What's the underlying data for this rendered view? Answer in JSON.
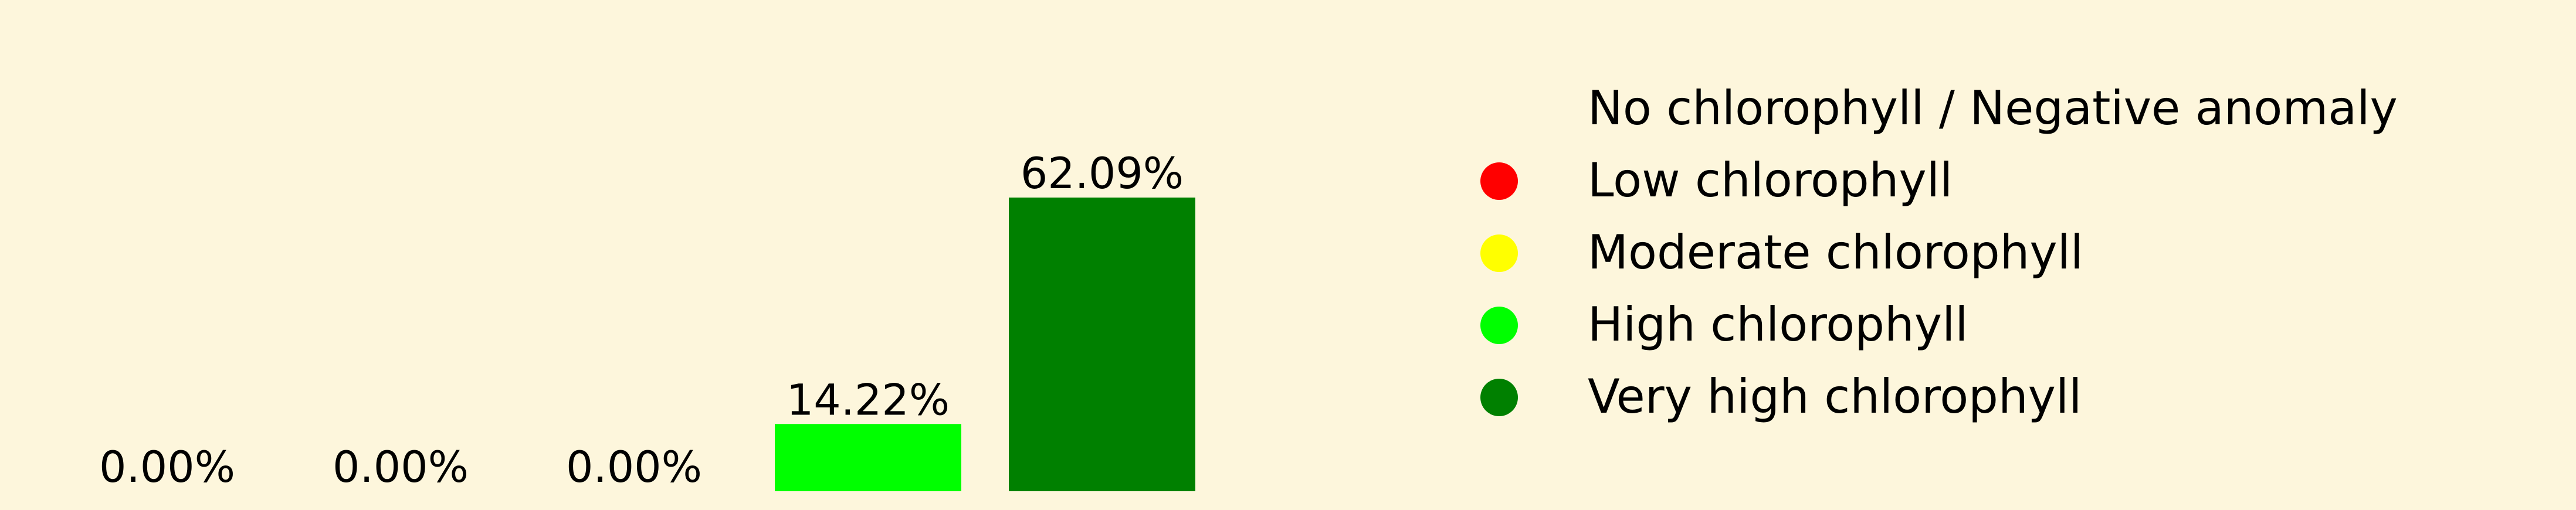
{
  "background": "#fdf6dc",
  "chart_data": {
    "type": "bar",
    "title": "",
    "xlabel": "",
    "ylabel": "",
    "ylim": [
      0,
      62.09
    ],
    "grid": false,
    "legend_position": "right",
    "categories": [
      "No chlorophyll / Negative anomaly",
      "Low chlorophyll",
      "Moderate chlorophyll",
      "High chlorophyll",
      "Very high chlorophyll"
    ],
    "values": [
      0.0,
      0.0,
      0.0,
      14.22,
      62.09
    ],
    "value_labels": [
      "0.00%",
      "0.00%",
      "0.00%",
      "14.22%",
      "62.09%"
    ],
    "colors": [
      "#fdf6dc",
      "#ff0000",
      "#ffff00",
      "#00ff00",
      "#008000"
    ]
  }
}
